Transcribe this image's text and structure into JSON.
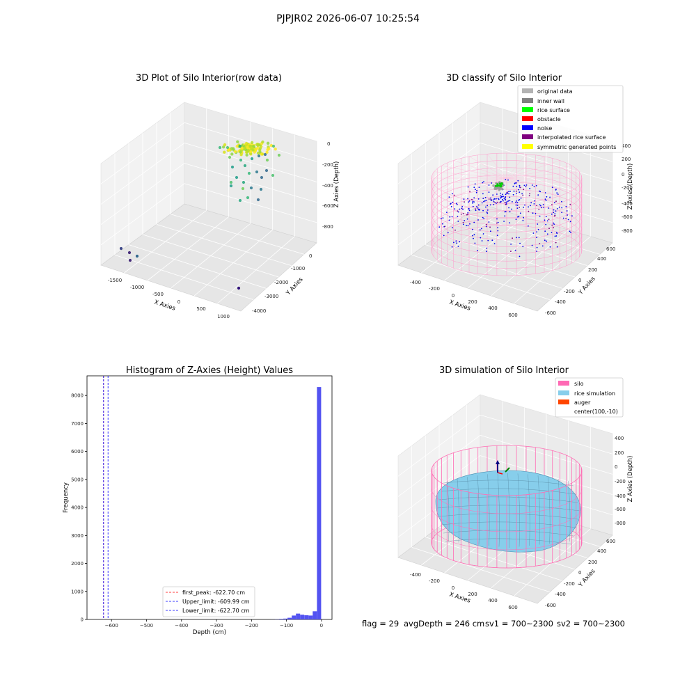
{
  "suptitle": "PJPJR02 2026-06-07 10:25:54",
  "panels": {
    "raw": {
      "title": "3D Plot of Silo Interior(row data)",
      "xlabel": "X Axies",
      "ylabel": "Y Axies",
      "zlabel": "Z Axies (Depth)",
      "x_ticks": [
        "-1500",
        "-1000",
        "-500",
        "0",
        "500",
        "1000"
      ],
      "y_ticks": [
        "0",
        "-1000",
        "-2000",
        "-3000",
        "-4000"
      ],
      "z_ticks": [
        "0",
        "-200",
        "-400",
        "-600",
        "-800"
      ]
    },
    "classify": {
      "title": "3D classify of Silo Interior",
      "xlabel": "X Axies",
      "ylabel": "Y Axies",
      "zlabel": "Z Axies (Depth)",
      "x_ticks": [
        "-400",
        "-200",
        "0",
        "200",
        "400",
        "600"
      ],
      "y_ticks": [
        "600",
        "400",
        "200",
        "0",
        "-200",
        "-400",
        "-600"
      ],
      "z_ticks": [
        "200",
        "0",
        "-200",
        "-400",
        "-600",
        "-800",
        "400"
      ],
      "legend": [
        {
          "label": "original data",
          "color": "#b3b3b3"
        },
        {
          "label": "inner wall",
          "color": "#808080"
        },
        {
          "label": "rice surface",
          "color": "#00ff00"
        },
        {
          "label": "obstacle",
          "color": "#ff0000"
        },
        {
          "label": "noise",
          "color": "#0000ff"
        },
        {
          "label": "interpolated rice surface",
          "color": "#800080"
        },
        {
          "label": "symmetric generated points",
          "color": "#ffff00"
        }
      ]
    },
    "simulation": {
      "title": "3D simulation of Silo Interior",
      "xlabel": "X Axies",
      "ylabel": "Y Axies",
      "zlabel": "Z Axies (Depth)",
      "x_ticks": [
        "-400",
        "-200",
        "0",
        "200",
        "400",
        "600"
      ],
      "y_ticks": [
        "600",
        "400",
        "200",
        "0",
        "-200",
        "-400",
        "-600"
      ],
      "z_ticks": [
        "400",
        "200",
        "0",
        "-200",
        "-400",
        "-600",
        "-800"
      ],
      "legend": [
        {
          "label": "silo",
          "color": "#ff69b4"
        },
        {
          "label": "rice simulation",
          "color": "#87ceeb"
        },
        {
          "label": "auger",
          "color": "#ff4500"
        },
        {
          "label": "center(100,-10)",
          "color": ""
        }
      ]
    }
  },
  "chart_data": [
    {
      "type": "histogram",
      "title": "Histogram of Z-Axies (Height) Values",
      "xlabel": "Depth (cm)",
      "ylabel": "Frequency",
      "xlim": [
        -670,
        30
      ],
      "ylim": [
        0,
        8700
      ],
      "x_ticks": [
        -600,
        -500,
        -400,
        -300,
        -200,
        -100,
        0
      ],
      "y_ticks": [
        0,
        1000,
        2000,
        3000,
        4000,
        5000,
        6000,
        7000,
        8000
      ],
      "bar_color": "#4a4af0",
      "bins": [
        {
          "x0": -145,
          "x1": -133,
          "count": 3
        },
        {
          "x0": -133,
          "x1": -121,
          "count": 8
        },
        {
          "x0": -121,
          "x1": -109,
          "count": 20
        },
        {
          "x0": -109,
          "x1": -97,
          "count": 30
        },
        {
          "x0": -97,
          "x1": -85,
          "count": 60
        },
        {
          "x0": -85,
          "x1": -73,
          "count": 140
        },
        {
          "x0": -73,
          "x1": -61,
          "count": 210
        },
        {
          "x0": -61,
          "x1": -49,
          "count": 170
        },
        {
          "x0": -49,
          "x1": -37,
          "count": 150
        },
        {
          "x0": -37,
          "x1": -25,
          "count": 140
        },
        {
          "x0": -25,
          "x1": -13,
          "count": 290
        },
        {
          "x0": -13,
          "x1": -1,
          "count": 8300
        }
      ],
      "vlines": [
        {
          "label": "first_peak: -622.70 cm",
          "x": -622.7,
          "color": "#ff0000"
        },
        {
          "label": "Upper_limit: -609.99 cm",
          "x": -609.99,
          "color": "#0000ff"
        },
        {
          "label": "Lower_limit: -622.70 cm",
          "x": -622.7,
          "color": "#0000ff"
        }
      ]
    }
  ],
  "footer": {
    "flag": "flag = 29",
    "avg": "avgDepth = 246 cm",
    "sv1": "sv1 = 700~2300",
    "sv2": "sv2 = 700~2300"
  }
}
